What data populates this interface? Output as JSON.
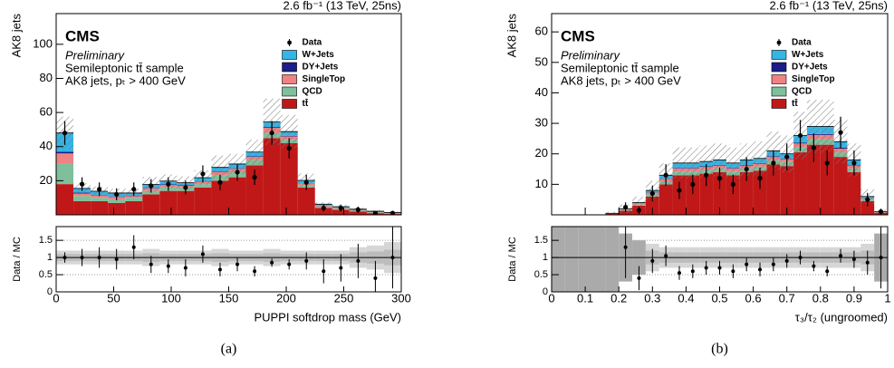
{
  "chart_data": [
    {
      "type": "stacked_histogram",
      "lumi_label": "2.6 fb⁻¹ (13 TeV, 25ns)",
      "cms_label": "CMS",
      "preliminary_label": "Preliminary",
      "sample_label": "Semileptonic tt̄ sample",
      "cut_label": "AK8 jets, pₜ > 400 GeV",
      "ylabel": "AK8 jets",
      "xlabel": "PUPPI softdrop mass (GeV)",
      "caption": "(a)",
      "bins": [
        0,
        15,
        30,
        45,
        60,
        75,
        90,
        105,
        120,
        135,
        150,
        165,
        180,
        195,
        210,
        225,
        240,
        255,
        270,
        285,
        300
      ],
      "xlim": [
        0,
        300
      ],
      "xticks": [
        0,
        50,
        100,
        150,
        200,
        250,
        300
      ],
      "ylim": [
        0,
        118
      ],
      "yticks": [
        20,
        40,
        60,
        80,
        100
      ],
      "data": {
        "name": "Data",
        "color": "#000000",
        "values": [
          48,
          18,
          15,
          12,
          15,
          17,
          18,
          16,
          24,
          19,
          25,
          22,
          48,
          39,
          19,
          4,
          4,
          3,
          1,
          1
        ],
        "errors": [
          7,
          4,
          4,
          3.5,
          4,
          4,
          4,
          4,
          5,
          4.5,
          5,
          4.5,
          7,
          6,
          4.5,
          2,
          2,
          1.8,
          1,
          1
        ]
      },
      "series": [
        {
          "name": "W+Jets",
          "color": "#35b5e5",
          "values": [
            11,
            2.5,
            2,
            2,
            1.5,
            2,
            2,
            1.5,
            2,
            2.5,
            2.5,
            2.5,
            3,
            2.5,
            1.5,
            0.8,
            0.6,
            0.4,
            0.3,
            0.2
          ]
        },
        {
          "name": "DY+Jets",
          "color": "#1c1c8a",
          "values": [
            1,
            0.5,
            0.3,
            0.3,
            0.3,
            0.3,
            0.3,
            0.3,
            0.3,
            0.3,
            0.3,
            0.3,
            0.5,
            0.3,
            0.2,
            0.1,
            0.1,
            0.1,
            0.1,
            0.1
          ]
        },
        {
          "name": "SingleTop",
          "color": "#f08282",
          "values": [
            6,
            1.5,
            1.5,
            1.5,
            1,
            1.5,
            1.5,
            1,
            1.5,
            2,
            2,
            2,
            3,
            2,
            1,
            0.5,
            0.5,
            0.3,
            0.3,
            0.2
          ]
        },
        {
          "name": "QCD",
          "color": "#7fbf9b",
          "values": [
            12,
            3,
            2,
            2,
            2,
            2,
            2,
            2,
            2,
            3,
            3,
            3,
            3,
            2,
            1.5,
            0.8,
            0.6,
            0.5,
            0.4,
            0.3
          ]
        },
        {
          "name": "tt̄",
          "color": "#c01818",
          "values": [
            18,
            8,
            8,
            7,
            8,
            12,
            14,
            14,
            16,
            20,
            22,
            29,
            45,
            42,
            16,
            4,
            3,
            2,
            1,
            0.5
          ]
        }
      ],
      "ratio": {
        "ylabel": "Data / MC",
        "ylim": [
          0,
          1.9
        ],
        "yticks": [
          0,
          0.5,
          1,
          1.5
        ],
        "reference_line": 1,
        "values": [
          1.0,
          1.0,
          1.0,
          0.95,
          1.3,
          0.8,
          0.75,
          0.7,
          1.1,
          0.65,
          0.8,
          0.6,
          0.85,
          0.8,
          0.9,
          0.6,
          0.7,
          0.9,
          0.4,
          1.0
        ],
        "errors": [
          0.15,
          0.25,
          0.3,
          0.3,
          0.35,
          0.25,
          0.2,
          0.25,
          0.25,
          0.2,
          0.2,
          0.15,
          0.12,
          0.15,
          0.25,
          0.35,
          0.4,
          0.5,
          0.5,
          0.9
        ],
        "band": [
          0.2,
          0.2,
          0.2,
          0.2,
          0.2,
          0.25,
          0.2,
          0.2,
          0.2,
          0.25,
          0.2,
          0.2,
          0.25,
          0.2,
          0.2,
          0.2,
          0.2,
          0.3,
          0.35,
          0.45
        ]
      }
    },
    {
      "type": "stacked_histogram",
      "lumi_label": "2.6 fb⁻¹ (13 TeV, 25ns)",
      "cms_label": "CMS",
      "preliminary_label": "Preliminary",
      "sample_label": "Semileptonic tt̄ sample",
      "cut_label": "AK8 jets, pₜ > 400 GeV",
      "ylabel": "AK8 jets",
      "xlabel": "τ₃/τ₂ (ungroomed)",
      "caption": "(b)",
      "bins": [
        0,
        0.04,
        0.08,
        0.12,
        0.16,
        0.2,
        0.24,
        0.28,
        0.32,
        0.36,
        0.4,
        0.44,
        0.48,
        0.52,
        0.56,
        0.6,
        0.64,
        0.68,
        0.72,
        0.76,
        0.8,
        0.84,
        0.88,
        0.92,
        0.96,
        1
      ],
      "xlim": [
        0,
        1
      ],
      "xticks": [
        0,
        0.1,
        0.2,
        0.3,
        0.4,
        0.5,
        0.6,
        0.7,
        0.8,
        0.9,
        1
      ],
      "ylim": [
        0,
        66
      ],
      "yticks": [
        10,
        20,
        30,
        40,
        50,
        60
      ],
      "data": {
        "name": "Data",
        "color": "#000000",
        "values": [
          null,
          null,
          null,
          null,
          null,
          2.5,
          1.5,
          7,
          13,
          8,
          10,
          13,
          12,
          10,
          15,
          12,
          17,
          19,
          26,
          22,
          17,
          27,
          17,
          5,
          1
        ],
        "errors": [
          null,
          null,
          null,
          null,
          null,
          1.6,
          1.2,
          2.6,
          3.6,
          2.8,
          3.2,
          3.6,
          3.5,
          3.2,
          3.9,
          3.5,
          4.1,
          4.4,
          5.1,
          4.7,
          4.1,
          5.2,
          4.1,
          2.2,
          1
        ]
      },
      "series": [
        {
          "name": "W+Jets",
          "color": "#35b5e5",
          "values": [
            0,
            0,
            0,
            0,
            0.05,
            0.15,
            0.25,
            0.6,
            1.1,
            1.6,
            1.6,
            1.6,
            1.6,
            1.6,
            1.6,
            1.5,
            1.8,
            1.5,
            2.3,
            2.5,
            2.5,
            2,
            1.7,
            0.6,
            0.1
          ]
        },
        {
          "name": "DY+Jets",
          "color": "#1c1c8a",
          "values": [
            0,
            0,
            0,
            0,
            0,
            0.05,
            0.05,
            0.1,
            0.1,
            0.2,
            0.2,
            0.2,
            0.2,
            0.2,
            0.2,
            0.2,
            0.2,
            0.2,
            0.3,
            0.3,
            0.3,
            0.3,
            0.2,
            0.1,
            0
          ]
        },
        {
          "name": "SingleTop",
          "color": "#f08282",
          "values": [
            0,
            0,
            0,
            0,
            0.05,
            0.1,
            0.3,
            0.5,
            0.8,
            1,
            1,
            1,
            1,
            1,
            1,
            1,
            1.1,
            1,
            1.3,
            1.4,
            1.4,
            1.2,
            0.9,
            0.3,
            0.1
          ]
        },
        {
          "name": "QCD",
          "color": "#7fbf9b",
          "values": [
            0,
            0,
            0,
            0,
            0.1,
            0.3,
            0.4,
            0.8,
            1,
            1.2,
            1.2,
            1.2,
            1.2,
            1.2,
            1.2,
            1.3,
            1.4,
            1.3,
            1.6,
            1.8,
            1.8,
            1.5,
            1.2,
            0.5,
            0.1
          ]
        },
        {
          "name": "tt̄",
          "color": "#c01818",
          "values": [
            0,
            0,
            0,
            0,
            0.3,
            1.4,
            3,
            6,
            10,
            13,
            13,
            13.5,
            14,
            13,
            14,
            14.5,
            16.5,
            16,
            20.5,
            23,
            23,
            19,
            14,
            4.5,
            0.7
          ]
        }
      ],
      "ratio": {
        "ylabel": "Data / MC",
        "ylim": [
          0,
          1.9
        ],
        "yticks": [
          0,
          0.5,
          1,
          1.5
        ],
        "reference_line": 1,
        "values": [
          null,
          null,
          null,
          null,
          null,
          1.3,
          0.4,
          0.9,
          1.05,
          0.55,
          0.6,
          0.7,
          0.7,
          0.6,
          0.8,
          0.65,
          0.8,
          0.9,
          1.0,
          0.75,
          0.6,
          1.05,
          0.95,
          0.85,
          1.0
        ],
        "errors": [
          null,
          null,
          null,
          null,
          null,
          0.9,
          0.35,
          0.35,
          0.3,
          0.2,
          0.2,
          0.2,
          0.2,
          0.2,
          0.2,
          0.2,
          0.2,
          0.2,
          0.2,
          0.15,
          0.15,
          0.2,
          0.25,
          0.35,
          0.9
        ],
        "band": [
          1,
          1,
          1,
          1,
          1,
          0.7,
          0.5,
          0.4,
          0.3,
          0.3,
          0.3,
          0.3,
          0.3,
          0.3,
          0.3,
          0.3,
          0.3,
          0.3,
          0.3,
          0.3,
          0.3,
          0.3,
          0.3,
          0.4,
          0.7
        ]
      }
    }
  ]
}
